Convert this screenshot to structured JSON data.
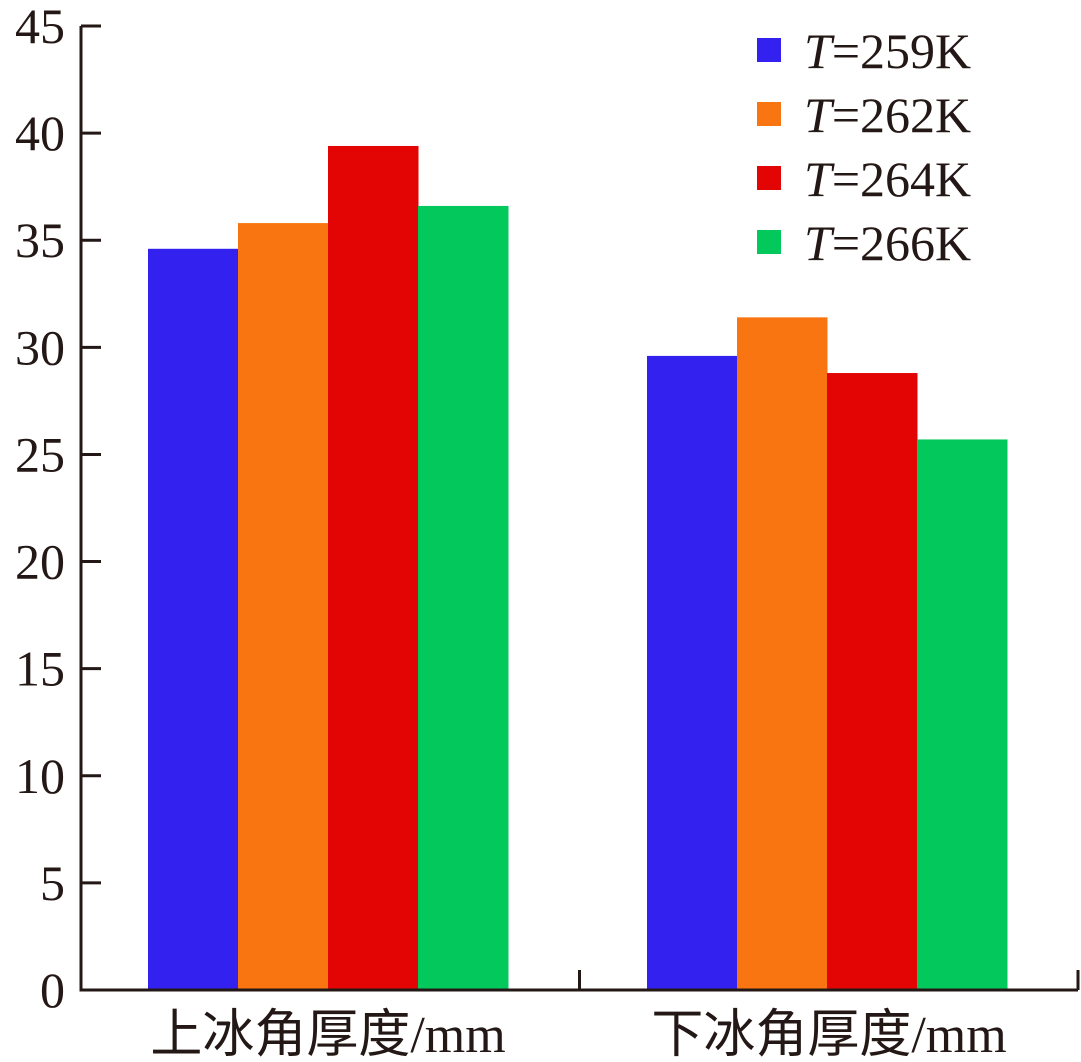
{
  "chart_data": {
    "type": "bar",
    "categories": [
      "上冰角厚度/mm",
      "下冰角厚度/mm"
    ],
    "series": [
      {
        "name": "T=259K",
        "legend_italic": "T",
        "legend_rest": "=259K",
        "color": "#3321f0",
        "values": [
          34.6,
          29.6
        ]
      },
      {
        "name": "T=262K",
        "legend_italic": "T",
        "legend_rest": "=262K",
        "color": "#f97512",
        "values": [
          35.8,
          31.4
        ]
      },
      {
        "name": "T=264K",
        "legend_italic": "T",
        "legend_rest": "=264K",
        "color": "#e30404",
        "values": [
          39.4,
          28.8
        ]
      },
      {
        "name": "T=266K",
        "legend_italic": "T",
        "legend_rest": "=266K",
        "color": "#03c95d",
        "values": [
          36.6,
          25.7
        ]
      }
    ],
    "yticks": [
      "0",
      "5",
      "10",
      "15",
      "20",
      "25",
      "30",
      "35",
      "40",
      "45"
    ],
    "ylim": [
      0,
      45
    ],
    "title": "",
    "xlabel": "",
    "ylabel": "",
    "grid": false,
    "legend_position": "top-right"
  }
}
